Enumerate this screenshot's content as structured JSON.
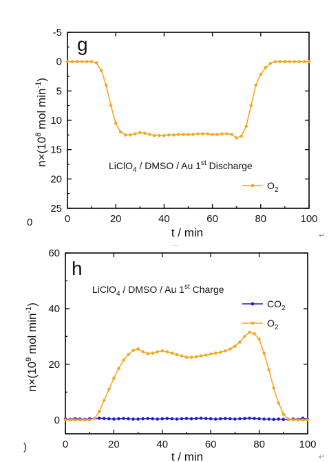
{
  "chart_data": [
    {
      "type": "line",
      "panel": "g",
      "annotation": "LiClO4 / DMSO / Au 1st Discharge",
      "xlabel": "t / min",
      "ylabel": "n×(10^8 mol min^-1)",
      "xlim": [
        0,
        100
      ],
      "ylim": [
        -5,
        25
      ],
      "y_inverted": true,
      "x_ticks": [
        0,
        20,
        40,
        60,
        80,
        100
      ],
      "y_ticks": [
        -5,
        0,
        5,
        10,
        15,
        20,
        25
      ],
      "x_tick_labels": [
        "0",
        "20",
        "40",
        "60",
        "80",
        "100"
      ],
      "y_tick_labels": [
        "-5",
        "0",
        "5",
        "10",
        "15",
        "20",
        "25"
      ],
      "legend_placement": "lower-right",
      "series": [
        {
          "name": "O2",
          "color": "#f5a623",
          "x": [
            0,
            2,
            4,
            6,
            8,
            10,
            12,
            14,
            16,
            18,
            20,
            22,
            24,
            26,
            28,
            30,
            32,
            34,
            36,
            38,
            40,
            42,
            44,
            46,
            48,
            50,
            52,
            54,
            56,
            58,
            60,
            62,
            64,
            66,
            68,
            70,
            72,
            74,
            76,
            78,
            80,
            82,
            84,
            86,
            88,
            90,
            92,
            94,
            96,
            98,
            100
          ],
          "y": [
            0,
            0,
            0,
            0,
            0,
            0,
            0.2,
            1.5,
            4,
            7.5,
            10.5,
            12,
            12.5,
            12.5,
            12.3,
            12.1,
            12.2,
            12.4,
            12.6,
            12.6,
            12.6,
            12.5,
            12.5,
            12.4,
            12.4,
            12.4,
            12.4,
            12.3,
            12.3,
            12.3,
            12.4,
            12.4,
            12.3,
            12.3,
            12.4,
            13,
            12.7,
            11,
            7.5,
            4,
            2.2,
            1,
            0.3,
            0,
            0,
            0,
            0,
            0,
            0,
            0,
            0
          ]
        }
      ]
    },
    {
      "type": "line",
      "panel": "h",
      "annotation": "LiClO4 / DMSO / Au 1st Charge",
      "xlabel": "t / min",
      "ylabel": "n×(10^9 mol min^-1)",
      "xlim": [
        0,
        100
      ],
      "ylim": [
        -5,
        60
      ],
      "x_ticks": [
        0,
        20,
        40,
        60,
        80,
        100
      ],
      "y_ticks": [
        0,
        20,
        40,
        60
      ],
      "x_tick_labels": [
        "0",
        "20",
        "40",
        "60",
        "80",
        "100"
      ],
      "y_tick_labels": [
        "0",
        "20",
        "40",
        "60"
      ],
      "legend_placement": "upper-right",
      "series": [
        {
          "name": "CO2",
          "color": "#1c1cc8",
          "x": [
            0,
            2,
            4,
            6,
            8,
            10,
            12,
            14,
            16,
            18,
            20,
            22,
            24,
            26,
            28,
            30,
            32,
            34,
            36,
            38,
            40,
            42,
            44,
            46,
            48,
            50,
            52,
            54,
            56,
            58,
            60,
            62,
            64,
            66,
            68,
            70,
            72,
            74,
            76,
            78,
            80,
            82,
            84,
            86,
            88,
            90,
            92,
            94,
            96,
            98,
            100
          ],
          "y": [
            0.3,
            0.2,
            0.4,
            0.3,
            0.2,
            0.4,
            0.5,
            0.6,
            0.5,
            0.4,
            0.3,
            0.4,
            0.5,
            0.4,
            0.3,
            0.3,
            0.4,
            0.5,
            0.4,
            0.3,
            0.4,
            0.5,
            0.4,
            0.3,
            0.4,
            0.5,
            0.4,
            0.5,
            0.6,
            0.5,
            0.4,
            0.3,
            0.4,
            0.5,
            0.4,
            0.3,
            0.4,
            0.5,
            0.6,
            0.5,
            0.4,
            0.3,
            0.3,
            0.2,
            0.3,
            0.2,
            0.2,
            0.3,
            0.2,
            0.6,
            0.2
          ]
        },
        {
          "name": "O2",
          "color": "#f5a623",
          "x": [
            0,
            2,
            4,
            6,
            8,
            10,
            12,
            14,
            16,
            18,
            20,
            22,
            24,
            26,
            28,
            30,
            32,
            34,
            36,
            38,
            40,
            42,
            44,
            46,
            48,
            50,
            52,
            54,
            56,
            58,
            60,
            62,
            64,
            66,
            68,
            70,
            72,
            74,
            76,
            78,
            80,
            82,
            84,
            86,
            88,
            90,
            92,
            94,
            96,
            98,
            100
          ],
          "y": [
            0,
            0,
            0,
            0,
            0,
            0,
            0.5,
            3,
            7,
            11,
            15,
            18.5,
            21.5,
            23.5,
            25,
            25.5,
            24.5,
            23.8,
            24,
            24.5,
            24.8,
            24.5,
            24,
            23.5,
            23,
            22.5,
            22.5,
            22.7,
            23,
            23.3,
            23.7,
            24,
            24.3,
            24.8,
            25.5,
            26.5,
            28,
            30,
            31.5,
            31,
            29,
            24,
            18,
            11.5,
            6,
            2,
            0.3,
            0,
            0,
            0,
            0
          ]
        }
      ]
    }
  ],
  "stray_labels": {
    "g_zero": "0",
    "h_zero": ")",
    "crop_fragment": "..."
  },
  "return_marks": {
    "g": "↵",
    "h": "↵"
  }
}
